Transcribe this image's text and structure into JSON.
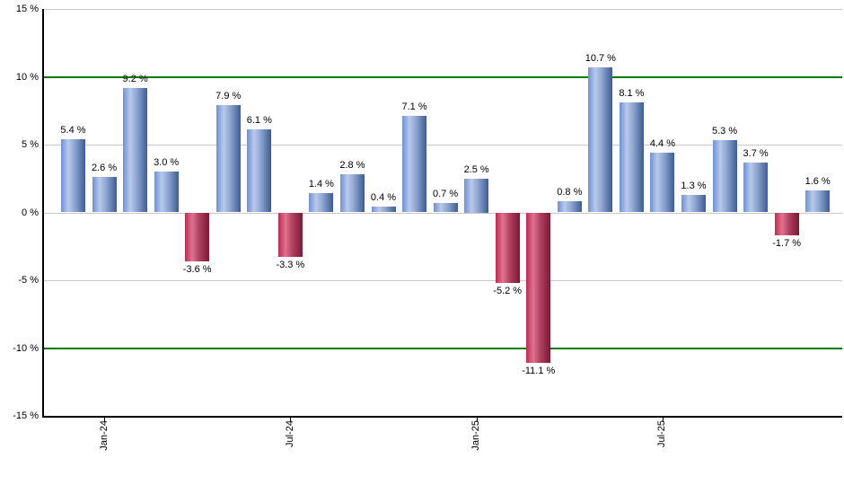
{
  "chart_data": {
    "type": "bar",
    "title": "",
    "xlabel": "",
    "ylabel": "",
    "values": [
      5.4,
      2.6,
      9.2,
      3.0,
      -3.6,
      7.9,
      6.1,
      -3.3,
      1.4,
      2.8,
      0.4,
      7.1,
      0.7,
      2.5,
      -5.2,
      -11.1,
      0.8,
      10.7,
      8.1,
      4.4,
      1.3,
      5.3,
      3.7,
      -1.7,
      1.6
    ],
    "bar_labels": [
      "5.4 %",
      "2.6 %",
      "9.2 %",
      "3.0 %",
      "-3.6 %",
      "7.9 %",
      "6.1 %",
      "-3.3 %",
      "1.4 %",
      "2.8 %",
      "0.4 %",
      "7.1 %",
      "0.7 %",
      "2.5 %",
      "-5.2 %",
      "-11.1 %",
      "0.8 %",
      "10.7 %",
      "8.1 %",
      "4.4 %",
      "1.3 %",
      "5.3 %",
      "3.7 %",
      "-1.7 %",
      "1.6 %"
    ],
    "ylim": [
      -15,
      15
    ],
    "ytick_values": [
      15,
      10,
      5,
      0,
      -5,
      -10,
      -15
    ],
    "ytick_labels": [
      "15 %",
      "10 %",
      "5 %",
      "0 %",
      "-5 %",
      "-10 %",
      "-15 %"
    ],
    "xticks": [
      {
        "label": "Jan-24",
        "bar_index": 1
      },
      {
        "label": "Jul-24",
        "bar_index": 7
      },
      {
        "label": "Jan-25",
        "bar_index": 13
      },
      {
        "label": "Jul-25",
        "bar_index": 19
      }
    ],
    "threshold_values": [
      10,
      -10
    ],
    "grid": true,
    "legend": false,
    "colors": {
      "positive_bar": "#6c92d8",
      "positive_bar_highlight": "#b9c9e9",
      "positive_bar_shadow": "#3d5c94",
      "negative_bar": "#c22950",
      "negative_bar_highlight": "#dd7490",
      "negative_bar_shadow": "#7a1a34",
      "gridline": "#c8c8c8",
      "threshold_line": "#007e00",
      "axis": "#000000",
      "background": "#ffffff"
    }
  }
}
